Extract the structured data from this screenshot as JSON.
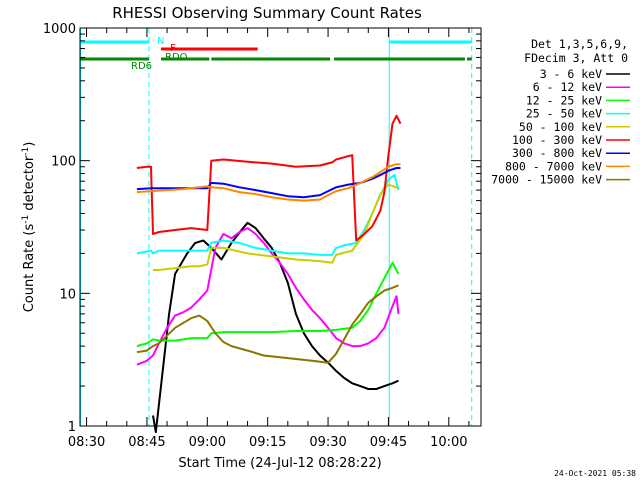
{
  "chart_data": {
    "type": "line",
    "title": "RHESSI Observing Summary Count Rates",
    "xlabel": "Start Time (24-Jul-12 08:28:22)",
    "ylabel_main": "Count Rate (s",
    "ylabel_sup1": "-1",
    "ylabel_mid": " detector",
    "ylabel_sup2": "-1",
    "ylabel_end": ")",
    "x_ticks": [
      "08:30",
      "08:45",
      "09:00",
      "09:15",
      "09:30",
      "09:45",
      "10:00"
    ],
    "x_tick_minutes": [
      30,
      45,
      60,
      75,
      90,
      105,
      120
    ],
    "x_range_minutes": [
      28.37,
      128.0
    ],
    "y_scale": "log",
    "ylim": [
      1,
      1000
    ],
    "y_ticks": [
      "1",
      "10",
      "100",
      "1000"
    ],
    "y_tick_values": [
      1,
      10,
      100,
      1000
    ],
    "legend": {
      "placement": "right",
      "header": [
        "Det 1,3,5,6,9,",
        "FDecim 3, Att 0"
      ]
    },
    "series": [
      {
        "name": "3 - 6 keV",
        "color": "#000000",
        "points": [
          [
            46.5,
            1.2
          ],
          [
            47.2,
            0.9
          ],
          [
            48.5,
            2
          ],
          [
            50.5,
            7
          ],
          [
            52,
            14
          ],
          [
            55,
            20
          ],
          [
            57,
            24
          ],
          [
            59,
            25
          ],
          [
            61,
            22
          ],
          [
            63.5,
            18
          ],
          [
            66,
            24
          ],
          [
            68.5,
            30
          ],
          [
            70,
            34
          ],
          [
            72,
            31
          ],
          [
            74,
            26
          ],
          [
            76,
            22
          ],
          [
            78,
            17
          ],
          [
            80,
            12
          ],
          [
            82,
            7
          ],
          [
            84,
            5
          ],
          [
            86,
            4
          ],
          [
            88,
            3.4
          ],
          [
            90,
            3
          ],
          [
            92,
            2.6
          ],
          [
            94,
            2.3
          ],
          [
            96,
            2.1
          ],
          [
            98,
            2
          ],
          [
            100,
            1.9
          ],
          [
            102,
            1.9
          ],
          [
            104,
            2
          ],
          [
            106,
            2.1
          ],
          [
            107.5,
            2.2
          ]
        ]
      },
      {
        "name": "6 - 12 keV",
        "color": "#ff00ff",
        "points": [
          [
            42.5,
            2.9
          ],
          [
            45,
            3.1
          ],
          [
            46.5,
            3.4
          ],
          [
            48,
            4.2
          ],
          [
            50,
            5.5
          ],
          [
            52,
            6.8
          ],
          [
            54,
            7.2
          ],
          [
            56,
            7.8
          ],
          [
            58,
            9
          ],
          [
            60,
            10.5
          ],
          [
            62,
            22
          ],
          [
            64,
            28
          ],
          [
            66,
            26
          ],
          [
            68,
            29
          ],
          [
            70,
            31
          ],
          [
            72,
            28
          ],
          [
            74,
            24
          ],
          [
            76,
            20
          ],
          [
            78,
            17
          ],
          [
            80,
            14
          ],
          [
            82,
            11
          ],
          [
            84,
            9
          ],
          [
            86,
            7.5
          ],
          [
            88,
            6.5
          ],
          [
            90,
            5.5
          ],
          [
            92,
            4.6
          ],
          [
            94,
            4.2
          ],
          [
            96,
            4
          ],
          [
            98,
            4
          ],
          [
            100,
            4.2
          ],
          [
            102,
            4.6
          ],
          [
            104,
            5.5
          ],
          [
            106,
            8
          ],
          [
            107,
            9.5
          ],
          [
            107.5,
            7
          ]
        ]
      },
      {
        "name": "12 - 25 keV",
        "color": "#00ff00",
        "points": [
          [
            42.5,
            4
          ],
          [
            45,
            4.2
          ],
          [
            46.5,
            4.5
          ],
          [
            48,
            4.4
          ],
          [
            52,
            4.4
          ],
          [
            56,
            4.6
          ],
          [
            60,
            4.6
          ],
          [
            61,
            5
          ],
          [
            64,
            5.1
          ],
          [
            70,
            5.1
          ],
          [
            76,
            5.1
          ],
          [
            82,
            5.2
          ],
          [
            88,
            5.2
          ],
          [
            92,
            5.3
          ],
          [
            94,
            5.4
          ],
          [
            96,
            5.5
          ],
          [
            98,
            6.2
          ],
          [
            100,
            7.5
          ],
          [
            102,
            10
          ],
          [
            104,
            13
          ],
          [
            106,
            17
          ],
          [
            107.5,
            14
          ]
        ]
      },
      {
        "name": "25 - 50 keV",
        "color": "#00ffff",
        "points": [
          [
            42.5,
            20
          ],
          [
            46,
            21
          ],
          [
            46.5,
            20
          ],
          [
            48,
            21
          ],
          [
            52,
            21
          ],
          [
            56,
            21
          ],
          [
            60,
            21
          ],
          [
            61,
            24
          ],
          [
            64,
            25
          ],
          [
            68,
            24
          ],
          [
            72,
            22
          ],
          [
            76,
            21
          ],
          [
            80,
            20
          ],
          [
            84,
            20
          ],
          [
            88,
            19.5
          ],
          [
            91,
            19.5
          ],
          [
            92,
            22
          ],
          [
            94,
            23
          ],
          [
            97,
            24
          ],
          [
            99,
            30
          ],
          [
            101,
            40
          ],
          [
            103,
            55
          ],
          [
            105,
            72
          ],
          [
            106.5,
            78
          ],
          [
            107.5,
            60
          ]
        ]
      },
      {
        "name": "50 - 100 keV",
        "color": "#cccc00",
        "points": [
          [
            46.5,
            15
          ],
          [
            48,
            15
          ],
          [
            52,
            15.5
          ],
          [
            56,
            16
          ],
          [
            58,
            16
          ],
          [
            60,
            16.5
          ],
          [
            61,
            22
          ],
          [
            64,
            22
          ],
          [
            70,
            20
          ],
          [
            76,
            19
          ],
          [
            82,
            18
          ],
          [
            88,
            17.5
          ],
          [
            91,
            17
          ],
          [
            92,
            19.5
          ],
          [
            96,
            21
          ],
          [
            99,
            28
          ],
          [
            101,
            40
          ],
          [
            103,
            56
          ],
          [
            105,
            66
          ],
          [
            107.5,
            62
          ]
        ]
      },
      {
        "name": "100 - 300 keV",
        "color": "#ff0000",
        "points": [
          [
            42.5,
            88
          ],
          [
            45,
            90
          ],
          [
            46,
            90
          ],
          [
            46.5,
            28
          ],
          [
            48,
            29
          ],
          [
            52,
            30
          ],
          [
            56,
            31
          ],
          [
            60,
            30
          ],
          [
            61,
            100
          ],
          [
            64,
            102
          ],
          [
            70,
            98
          ],
          [
            76,
            95
          ],
          [
            82,
            90
          ],
          [
            88,
            92
          ],
          [
            91,
            97
          ],
          [
            92,
            102
          ],
          [
            95,
            108
          ],
          [
            96,
            110
          ],
          [
            97,
            25
          ],
          [
            99,
            28
          ],
          [
            101,
            32
          ],
          [
            103,
            42
          ],
          [
            104,
            58
          ],
          [
            105,
            110
          ],
          [
            106,
            190
          ],
          [
            107,
            218
          ],
          [
            108,
            190
          ]
        ]
      },
      {
        "name": "300 - 800 keV",
        "color": "#0000ff",
        "points": [
          [
            42.5,
            61
          ],
          [
            46,
            62
          ],
          [
            50,
            62
          ],
          [
            54,
            62
          ],
          [
            58,
            62
          ],
          [
            60,
            62
          ],
          [
            61,
            68
          ],
          [
            64,
            67
          ],
          [
            68,
            63
          ],
          [
            72,
            60
          ],
          [
            76,
            57
          ],
          [
            80,
            54
          ],
          [
            84,
            53
          ],
          [
            88,
            55
          ],
          [
            90,
            59
          ],
          [
            92,
            63
          ],
          [
            95,
            66
          ],
          [
            98,
            68
          ],
          [
            101,
            73
          ],
          [
            103,
            78
          ],
          [
            105,
            84
          ],
          [
            107,
            88
          ],
          [
            108,
            88
          ]
        ]
      },
      {
        "name": "800 - 7000 keV",
        "color": "#ff8800",
        "points": [
          [
            42.5,
            58
          ],
          [
            46,
            59
          ],
          [
            50,
            60
          ],
          [
            54,
            61
          ],
          [
            58,
            63
          ],
          [
            60,
            64
          ],
          [
            61,
            63
          ],
          [
            64,
            62
          ],
          [
            68,
            58
          ],
          [
            72,
            56
          ],
          [
            76,
            53
          ],
          [
            80,
            51
          ],
          [
            84,
            50
          ],
          [
            88,
            51
          ],
          [
            90,
            55
          ],
          [
            92,
            59
          ],
          [
            95,
            62
          ],
          [
            98,
            68
          ],
          [
            101,
            75
          ],
          [
            103,
            82
          ],
          [
            105,
            90
          ],
          [
            107,
            94
          ],
          [
            108,
            94
          ]
        ]
      },
      {
        "name": "7000 - 15000 keV",
        "color": "#8b7500",
        "points": [
          [
            42.5,
            3.6
          ],
          [
            45,
            3.7
          ],
          [
            46.5,
            4
          ],
          [
            48,
            4.2
          ],
          [
            52,
            5.5
          ],
          [
            56,
            6.5
          ],
          [
            58,
            6.8
          ],
          [
            60,
            6.2
          ],
          [
            62,
            5
          ],
          [
            64,
            4.3
          ],
          [
            66,
            4
          ],
          [
            70,
            3.7
          ],
          [
            74,
            3.4
          ],
          [
            78,
            3.3
          ],
          [
            82,
            3.2
          ],
          [
            86,
            3.1
          ],
          [
            90,
            3
          ],
          [
            92,
            3.5
          ],
          [
            94,
            4.5
          ],
          [
            96,
            5.8
          ],
          [
            98,
            7
          ],
          [
            100,
            8.5
          ],
          [
            102,
            9.5
          ],
          [
            104,
            10.5
          ],
          [
            106,
            11
          ],
          [
            107.5,
            11.5
          ]
        ]
      }
    ],
    "flags": [
      {
        "label": "N",
        "color": "#00ffff",
        "segments": [
          [
            28.5,
            45.5
          ],
          [
            105.2,
            125.7
          ]
        ]
      },
      {
        "label": "F",
        "color": "#ff0000",
        "segments": [
          [
            48.5,
            72.5
          ]
        ]
      },
      {
        "label": "RD6",
        "color": "#008800",
        "segments": [
          [
            28.5,
            45.5
          ],
          [
            48.5,
            60.5
          ],
          [
            61,
            90.5
          ],
          [
            91.5,
            124
          ],
          [
            124.5,
            125.7
          ]
        ]
      },
      {
        "label": "RDO",
        "color": "#008800",
        "segments": [
          [
            48.5,
            50.5
          ]
        ]
      }
    ],
    "vertical_lines": {
      "solid": [
        28.5,
        105.2
      ],
      "dashed": [
        45.5,
        125.7
      ]
    }
  },
  "footer_timestamp": "24-Oct-2021 05:38"
}
